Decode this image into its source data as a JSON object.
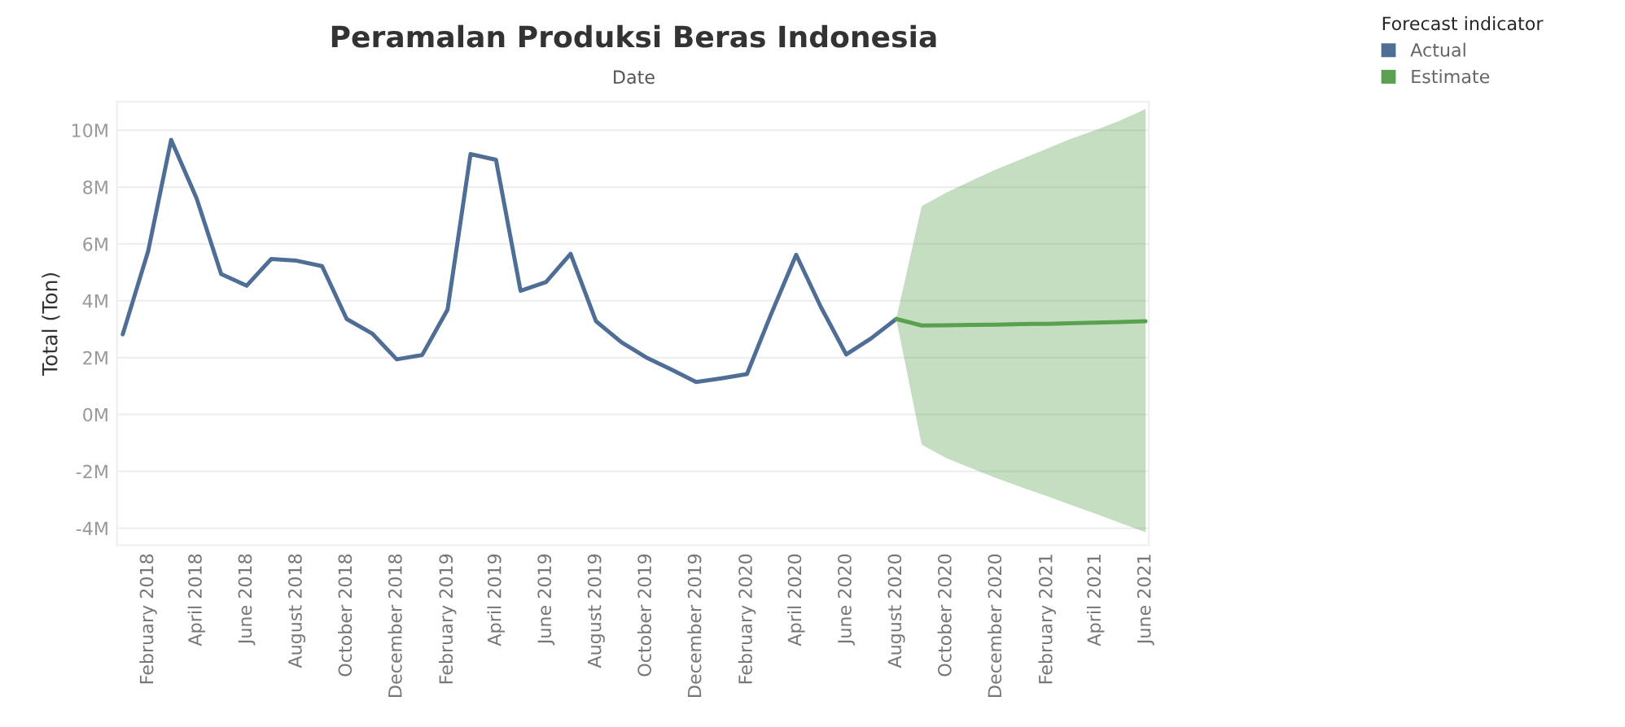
{
  "chart_data": {
    "type": "line",
    "title": "Peramalan Produksi Beras Indonesia",
    "subtitle": "Date",
    "ylabel": "Total (Ton)",
    "legend_title": "Forecast indicator",
    "x": [
      "2018-01",
      "2018-02",
      "2018-03",
      "2018-04",
      "2018-05",
      "2018-06",
      "2018-07",
      "2018-08",
      "2018-09",
      "2018-10",
      "2018-11",
      "2018-12",
      "2019-01",
      "2019-02",
      "2019-03",
      "2019-04",
      "2019-05",
      "2019-06",
      "2019-07",
      "2019-08",
      "2019-09",
      "2019-10",
      "2019-11",
      "2019-12",
      "2020-01",
      "2020-02",
      "2020-03",
      "2020-04",
      "2020-05",
      "2020-06",
      "2020-07",
      "2020-08"
    ],
    "series": [
      {
        "name": "Actual",
        "color": "#4e6e96",
        "values": [
          2.82,
          5.75,
          9.66,
          7.61,
          4.94,
          4.53,
          5.47,
          5.41,
          5.22,
          3.36,
          2.85,
          1.94,
          2.09,
          3.69,
          9.16,
          8.96,
          4.35,
          4.66,
          5.65,
          3.28,
          2.54,
          2.01,
          1.58,
          1.14,
          1.27,
          1.42,
          3.5,
          5.62,
          3.79,
          2.11,
          2.67,
          3.36
        ]
      },
      {
        "name": "Estimate",
        "color": "#59a14f",
        "x": [
          "2020-08",
          "2020-09",
          "2020-10",
          "2020-11",
          "2020-12",
          "2021-01",
          "2021-02",
          "2021-03",
          "2021-04",
          "2021-05",
          "2021-06"
        ],
        "values": [
          3.36,
          3.13,
          3.14,
          3.15,
          3.16,
          3.18,
          3.19,
          3.21,
          3.23,
          3.25,
          3.28
        ],
        "lower": [
          3.36,
          -1.06,
          -1.53,
          -1.9,
          -2.24,
          -2.56,
          -2.88,
          -3.17,
          -3.49,
          -3.81,
          -4.14
        ],
        "upper": [
          3.36,
          7.33,
          7.8,
          8.23,
          8.62,
          8.99,
          9.35,
          9.69,
          10.0,
          10.34,
          10.75
        ]
      }
    ],
    "xlim": [
      "2017-12-25",
      "2021-06-05"
    ],
    "xticks": [
      {
        "value": "2018-02",
        "label": "February 2018"
      },
      {
        "value": "2018-04",
        "label": "April 2018"
      },
      {
        "value": "2018-06",
        "label": "June 2018"
      },
      {
        "value": "2018-08",
        "label": "August 2018"
      },
      {
        "value": "2018-10",
        "label": "October 2018"
      },
      {
        "value": "2018-12",
        "label": "December 2018"
      },
      {
        "value": "2019-02",
        "label": "February 2019"
      },
      {
        "value": "2019-04",
        "label": "April 2019"
      },
      {
        "value": "2019-06",
        "label": "June 2019"
      },
      {
        "value": "2019-08",
        "label": "August 2019"
      },
      {
        "value": "2019-10",
        "label": "October 2019"
      },
      {
        "value": "2019-12",
        "label": "December 2019"
      },
      {
        "value": "2020-02",
        "label": "February 2020"
      },
      {
        "value": "2020-04",
        "label": "April 2020"
      },
      {
        "value": "2020-06",
        "label": "June 2020"
      },
      {
        "value": "2020-08",
        "label": "August 2020"
      },
      {
        "value": "2020-10",
        "label": "October 2020"
      },
      {
        "value": "2020-12",
        "label": "December 2020"
      },
      {
        "value": "2021-02",
        "label": "February 2021"
      },
      {
        "value": "2021-04",
        "label": "April 2021"
      },
      {
        "value": "2021-06",
        "label": "June 2021"
      }
    ],
    "ylim": [
      -4.6,
      11
    ],
    "yticks": [
      {
        "value": -4,
        "label": "-4M"
      },
      {
        "value": -2,
        "label": "-2M"
      },
      {
        "value": 0,
        "label": "0M"
      },
      {
        "value": 2,
        "label": "2M"
      },
      {
        "value": 4,
        "label": "4M"
      },
      {
        "value": 6,
        "label": "6M"
      },
      {
        "value": 8,
        "label": "8M"
      },
      {
        "value": 10,
        "label": "10M"
      }
    ],
    "grid": "y",
    "legend": "top right",
    "line_style": "solid"
  }
}
